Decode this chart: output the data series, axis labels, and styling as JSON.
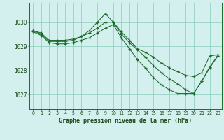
{
  "title": "Graphe pression niveau de la mer (hPa)",
  "bg_color": "#d4f0ee",
  "grid_color": "#88ccbb",
  "line_color": "#1a6b2a",
  "x_labels": [
    "0",
    "1",
    "2",
    "3",
    "4",
    "5",
    "6",
    "7",
    "8",
    "9",
    "10",
    "11",
    "12",
    "13",
    "14",
    "15",
    "16",
    "17",
    "18",
    "19",
    "20",
    "21",
    "22",
    "23"
  ],
  "ylim": [
    1026.4,
    1030.8
  ],
  "yticks": [
    1027,
    1028,
    1029,
    1030
  ],
  "series_top": [
    1029.65,
    1029.55,
    1029.25,
    1029.25,
    1029.25,
    1029.3,
    1029.4,
    1029.55,
    1029.75,
    1030.0,
    1030.0,
    1029.6,
    1029.25,
    1028.9,
    1028.75,
    1028.55,
    1028.3,
    1028.1,
    1027.95,
    1027.8,
    1027.75,
    1027.9,
    1028.6,
    1028.65
  ],
  "series_spike": [
    1029.65,
    1029.5,
    1029.2,
    1029.2,
    1029.2,
    1029.25,
    1029.4,
    1029.65,
    1030.0,
    1030.35,
    1030.0,
    1029.5,
    1029.15,
    1028.85,
    1028.55,
    1028.2,
    1027.9,
    1027.65,
    1027.45,
    1027.2,
    1027.05,
    1027.55,
    1028.1,
    1028.6
  ],
  "series_descent": [
    1029.6,
    1029.45,
    1029.15,
    1029.1,
    1029.1,
    1029.15,
    1029.25,
    1029.35,
    1029.55,
    1029.75,
    1029.9,
    1029.35,
    1028.9,
    1028.45,
    1028.1,
    1027.7,
    1027.4,
    1027.2,
    1027.05,
    1027.05,
    1027.05,
    1027.55,
    1028.15,
    1028.6
  ]
}
